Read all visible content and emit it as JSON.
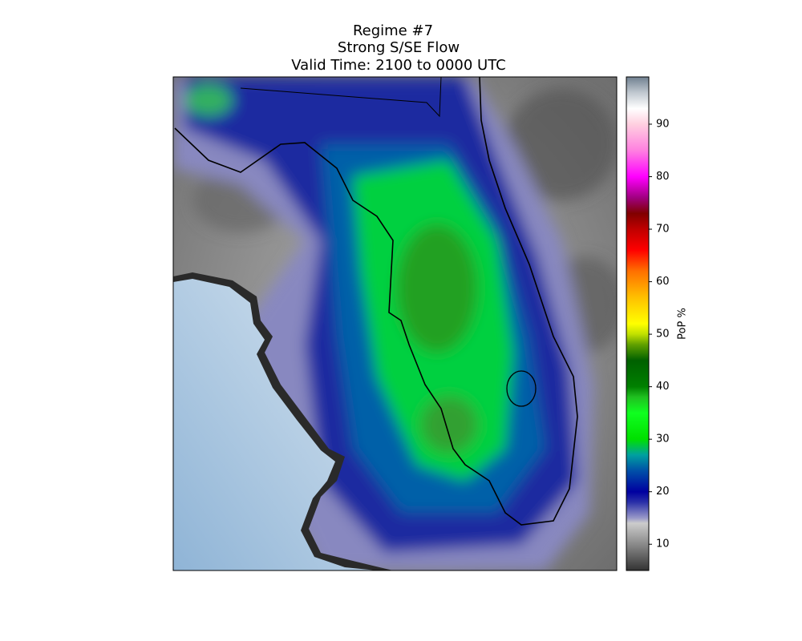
{
  "title": [
    "Regime #7",
    "Strong S/SE Flow",
    "Valid Time: 2100 to 0000 UTC"
  ],
  "colorbar": {
    "label": "PoP %",
    "lim": [
      5,
      99
    ],
    "ticks": [
      10,
      20,
      30,
      40,
      50,
      60,
      70,
      80,
      90
    ],
    "colormap": [
      {
        "value": 5,
        "color": "#333333"
      },
      {
        "value": 10,
        "color": "#8a8a8a"
      },
      {
        "value": 14,
        "color": "#cccccc"
      },
      {
        "value": 15,
        "color": "#9898c8"
      },
      {
        "value": 18,
        "color": "#2a30a8"
      },
      {
        "value": 20,
        "color": "#0000a0"
      },
      {
        "value": 24,
        "color": "#0050a8"
      },
      {
        "value": 27,
        "color": "#00a0a0"
      },
      {
        "value": 30,
        "color": "#00e000"
      },
      {
        "value": 35,
        "color": "#10ff20"
      },
      {
        "value": 38,
        "color": "#20c020"
      },
      {
        "value": 40,
        "color": "#008000"
      },
      {
        "value": 45,
        "color": "#006000"
      },
      {
        "value": 48,
        "color": "#60a000"
      },
      {
        "value": 50,
        "color": "#c0e000"
      },
      {
        "value": 52,
        "color": "#ffff00"
      },
      {
        "value": 57,
        "color": "#ffc000"
      },
      {
        "value": 62,
        "color": "#ff7000"
      },
      {
        "value": 66,
        "color": "#ff0000"
      },
      {
        "value": 70,
        "color": "#c00000"
      },
      {
        "value": 73,
        "color": "#800000"
      },
      {
        "value": 76,
        "color": "#a00080"
      },
      {
        "value": 80,
        "color": "#ff00ff"
      },
      {
        "value": 85,
        "color": "#ff80e0"
      },
      {
        "value": 90,
        "color": "#ffd0e0"
      },
      {
        "value": 93,
        "color": "#ffffff"
      },
      {
        "value": 96,
        "color": "#c0c8d0"
      },
      {
        "value": 99,
        "color": "#708090"
      }
    ]
  }
}
